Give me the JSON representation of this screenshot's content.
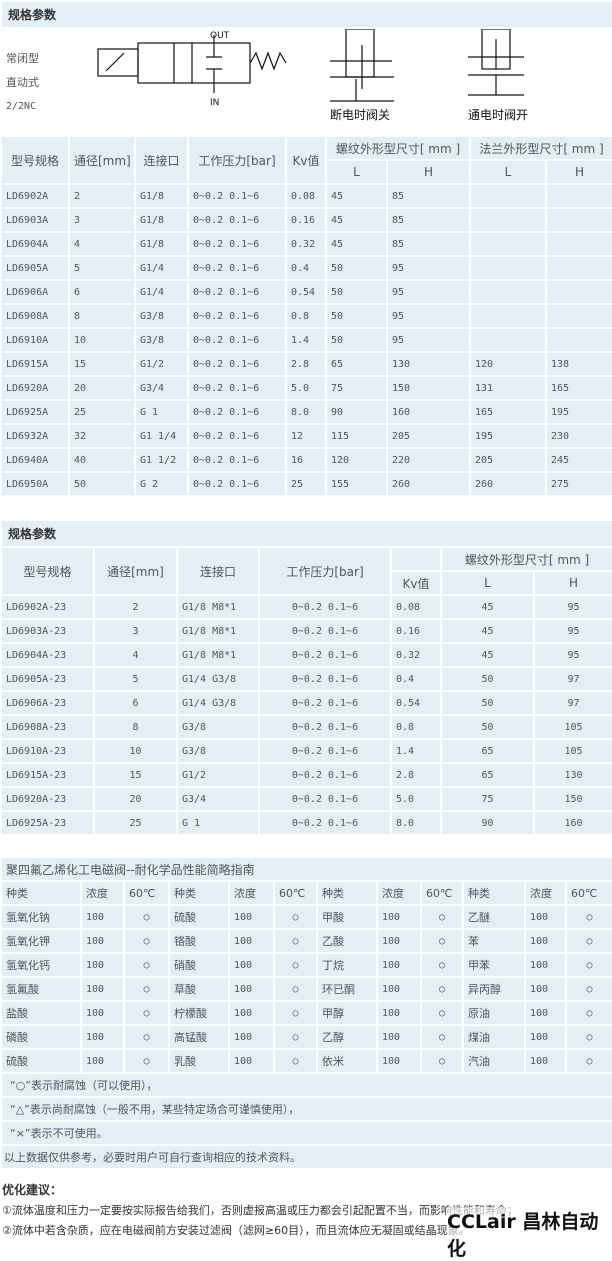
{
  "section1": {
    "title": "规格参数",
    "type_lines": [
      "常闭型",
      "直动式",
      "2/2NC"
    ],
    "diagram_labels": {
      "out": "OUT",
      "in": "IN",
      "off": "断电时阀关",
      "on": "通电时阀开"
    }
  },
  "table1": {
    "headers": [
      "型号规格",
      "通径[mm]",
      "连接口",
      "工作压力[bar]",
      "Kv值",
      "螺纹外形型尺寸[ mm ]",
      "法兰外形型尺寸[ mm ]"
    ],
    "sub": [
      "L",
      "H",
      "L",
      "H"
    ],
    "rows": [
      [
        "LD6902A",
        "2",
        "G1/8",
        "0~0.2  0.1~6",
        "0.08",
        "45",
        "85",
        "",
        ""
      ],
      [
        "LD6903A",
        "3",
        "G1/8",
        "0~0.2  0.1~6",
        "0.16",
        "45",
        "85",
        "",
        ""
      ],
      [
        "LD6904A",
        "4",
        "G1/8",
        "0~0.2  0.1~6",
        "0.32",
        "45",
        "85",
        "",
        ""
      ],
      [
        "LD6905A",
        "5",
        "G1/4",
        "0~0.2  0.1~6",
        "0.4",
        "50",
        "95",
        "",
        ""
      ],
      [
        "LD6906A",
        "6",
        "G1/4",
        "0~0.2  0.1~6",
        "0.54",
        "50",
        "95",
        "",
        ""
      ],
      [
        "LD6908A",
        "8",
        "G3/8",
        "0~0.2  0.1~6",
        "0.8",
        "50",
        "95",
        "",
        ""
      ],
      [
        "LD6910A",
        "10",
        "G3/8",
        "0~0.2  0.1~6",
        "1.4",
        "50",
        "95",
        "",
        ""
      ],
      [
        "LD6915A",
        "15",
        "G1/2",
        "0~0.2  0.1~6",
        "2.8",
        "65",
        "130",
        "120",
        "138"
      ],
      [
        "LD6920A",
        "20",
        "G3/4",
        "0~0.2  0.1~6",
        "5.0",
        "75",
        "150",
        "131",
        "165"
      ],
      [
        "LD6925A",
        "25",
        "G 1",
        "0~0.2  0.1~6",
        "8.0",
        "90",
        "160",
        "165",
        "195"
      ],
      [
        "LD6932A",
        "32",
        "G1 1/4",
        "0~0.2  0.1~6",
        "12",
        "115",
        "205",
        "195",
        "230"
      ],
      [
        "LD6940A",
        "40",
        "G1 1/2",
        "0~0.2  0.1~6",
        "16",
        "120",
        "220",
        "205",
        "245"
      ],
      [
        "LD6950A",
        "50",
        "G 2",
        "0~0.2  0.1~6",
        "25",
        "155",
        "260",
        "260",
        "275"
      ]
    ]
  },
  "section2": {
    "title": "规格参数"
  },
  "table2": {
    "headers": [
      "型号规格",
      "通径[mm]",
      "连接口",
      "工作压力[bar]",
      "螺纹外形型尺寸[ mm ]"
    ],
    "sub": [
      "Kv值",
      "L",
      "H"
    ],
    "rows": [
      [
        "LD6902A-23",
        "2",
        "G1/8 M8*1",
        "0~0.2  0.1~6",
        "0.08",
        "45",
        "95"
      ],
      [
        "LD6903A-23",
        "3",
        "G1/8 M8*1",
        "0~0.2  0.1~6",
        "0.16",
        "45",
        "95"
      ],
      [
        "LD6904A-23",
        "4",
        "G1/8 M8*1",
        "0~0.2  0.1~6",
        "0.32",
        "45",
        "95"
      ],
      [
        "LD6905A-23",
        "5",
        "G1/4 G3/8",
        "0~0.2  0.1~6",
        "0.4",
        "50",
        "97"
      ],
      [
        "LD6906A-23",
        "6",
        "G1/4 G3/8",
        "0~0.2  0.1~6",
        "0.54",
        "50",
        "97"
      ],
      [
        "LD6908A-23",
        "8",
        "G3/8",
        "0~0.2  0.1~6",
        "0.8",
        "50",
        "105"
      ],
      [
        "LD6910A-23",
        "10",
        "G3/8",
        "0~0.2  0.1~6",
        "1.4",
        "65",
        "105"
      ],
      [
        "LD6915A-23",
        "15",
        "G1/2",
        "0~0.2  0.1~6",
        "2.8",
        "65",
        "130"
      ],
      [
        "LD6920A-23",
        "20",
        "G3/4",
        "0~0.2  0.1~6",
        "5.0",
        "75",
        "150"
      ],
      [
        "LD6925A-23",
        "25",
        "G 1",
        "0~0.2  0.1~6",
        "8.0",
        "90",
        "160"
      ]
    ]
  },
  "chem": {
    "title": "聚四氟乙烯化工电磁阀--耐化学品性能简略指南",
    "headers": [
      "种类",
      "浓度",
      "60℃",
      "种类",
      "浓度",
      "60℃",
      "种类",
      "浓度",
      "60℃",
      "种类",
      "浓度",
      "60℃"
    ],
    "rows": [
      [
        "氢氧化钠",
        "100",
        "○",
        "硫酸",
        "100",
        "○",
        "甲酸",
        "100",
        "○",
        "乙醚",
        "100",
        "○"
      ],
      [
        "氢氧化钾",
        "100",
        "○",
        "铬酸",
        "100",
        "○",
        "乙酸",
        "100",
        "○",
        "苯",
        "100",
        "○"
      ],
      [
        "氢氧化钙",
        "100",
        "○",
        "硝酸",
        "100",
        "○",
        "丁烷",
        "100",
        "○",
        "甲苯",
        "100",
        "○"
      ],
      [
        "氢氟酸",
        "100",
        "○",
        "草酸",
        "100",
        "○",
        "环已酮",
        "100",
        "○",
        "异丙醇",
        "100",
        "○"
      ],
      [
        "盐酸",
        "100",
        "○",
        "柠檬酸",
        "100",
        "○",
        "甲醇",
        "100",
        "○",
        "原油",
        "100",
        "○"
      ],
      [
        "磷酸",
        "100",
        "○",
        "高锰酸",
        "100",
        "○",
        "乙醇",
        "100",
        "○",
        "煤油",
        "100",
        "○"
      ],
      [
        "硫酸",
        "100",
        "○",
        "乳酸",
        "100",
        "○",
        "依米",
        "100",
        "○",
        "汽油",
        "100",
        "○"
      ]
    ],
    "notes": [
      "“○”表示耐腐蚀（可以使用），",
      "“△”表示尚耐腐蚀（一般不用，某些特定场合可谨慎使用），",
      "“×”表示不可使用。",
      "以上数据仅供参考，必要时用户可自行查询相应的技术资料。"
    ]
  },
  "advice": {
    "title": "优化建议：",
    "items": [
      "①流体温度和压力一定要按实际报告给我们，否则虚报高温或压力都会引起配置不当，而影响性能和寿命；",
      "②流体中若含杂质，应在电磁阀前方安装过滤阀（滤网≥60目），而且流体应无凝固或结晶现象。"
    ]
  },
  "watermark": "CCLair 昌林自动化"
}
